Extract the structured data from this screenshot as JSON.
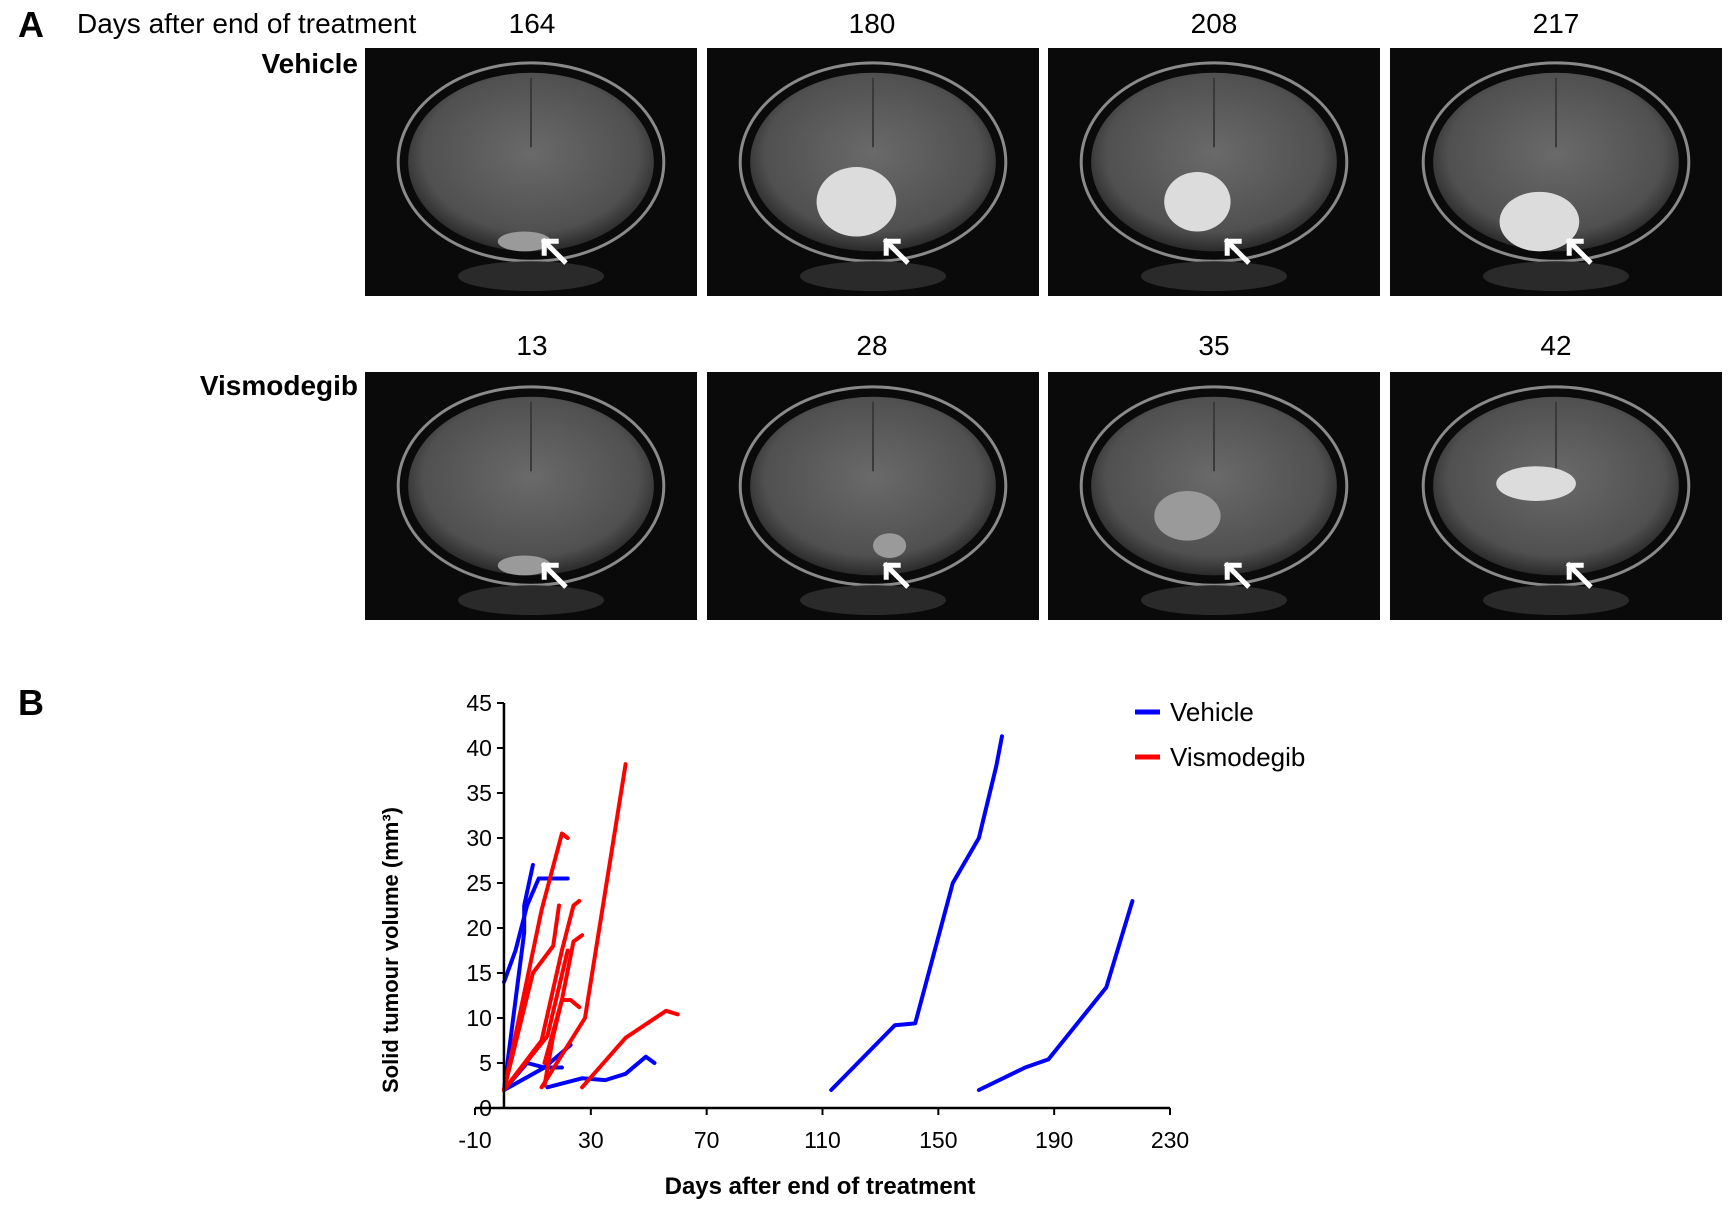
{
  "panel_a": {
    "letter": "A",
    "header": "Days after end of treatment",
    "rows": [
      {
        "group": "Vehicle",
        "days": [
          "164",
          "180",
          "208",
          "217"
        ]
      },
      {
        "group": "Vismodegib",
        "days": [
          "13",
          "28",
          "35",
          "42"
        ]
      }
    ]
  },
  "panel_b": {
    "letter": "B"
  },
  "chart_data": {
    "type": "line",
    "xlabel": "Days after end of treatment",
    "ylabel": "Solid tumour volume (mm³)",
    "xlim": [
      -10,
      230
    ],
    "ylim": [
      0,
      45
    ],
    "xticks": [
      -10,
      30,
      70,
      110,
      150,
      190,
      230
    ],
    "yticks": [
      0,
      5,
      10,
      15,
      20,
      25,
      30,
      35,
      40,
      45
    ],
    "legend_position": "top-right",
    "colors": {
      "Vehicle": "#0000ff",
      "Vismodegib": "#ff0000"
    },
    "series": [
      {
        "name": "Vehicle",
        "color": "#0000ff",
        "x": [
          0,
          7,
          7,
          10
        ],
        "y": [
          2,
          19.5,
          22.5,
          27
        ]
      },
      {
        "name": "Vehicle",
        "color": "#0000ff",
        "x": [
          0,
          4,
          8,
          12,
          16,
          22
        ],
        "y": [
          14,
          17.5,
          22.5,
          25.5,
          25.5,
          25.5
        ]
      },
      {
        "name": "Vehicle",
        "color": "#0000ff",
        "x": [
          0,
          8,
          14,
          20
        ],
        "y": [
          2,
          5,
          4.5,
          4.5
        ]
      },
      {
        "name": "Vehicle",
        "color": "#0000ff",
        "x": [
          0,
          14,
          23
        ],
        "y": [
          2,
          4.5,
          7
        ]
      },
      {
        "name": "Vehicle",
        "color": "#0000ff",
        "x": [
          15,
          27,
          35,
          42,
          49,
          52
        ],
        "y": [
          2.3,
          3.3,
          3.1,
          3.8,
          5.7,
          5
        ]
      },
      {
        "name": "Vehicle",
        "color": "#0000ff",
        "x": [
          113,
          135,
          142,
          155,
          164,
          170,
          172
        ],
        "y": [
          2,
          9.2,
          9.4,
          25,
          30,
          38,
          41.3
        ]
      },
      {
        "name": "Vehicle",
        "color": "#0000ff",
        "x": [
          164,
          180,
          188,
          208,
          217
        ],
        "y": [
          2,
          4.5,
          5.4,
          13.4,
          23
        ]
      }
    ],
    "series_red": [
      {
        "name": "Vismodegib",
        "color": "#ff0000",
        "x": [
          0,
          13,
          20,
          22
        ],
        "y": [
          2,
          22,
          30.5,
          30
        ]
      },
      {
        "name": "Vismodegib",
        "color": "#ff0000",
        "x": [
          0,
          15,
          22
        ],
        "y": [
          2,
          8,
          17.5
        ]
      },
      {
        "name": "Vismodegib",
        "color": "#ff0000",
        "x": [
          0,
          10,
          17,
          19
        ],
        "y": [
          2,
          15,
          18,
          22.5
        ]
      },
      {
        "name": "Vismodegib",
        "color": "#ff0000",
        "x": [
          0,
          13,
          20,
          24,
          26
        ],
        "y": [
          2,
          7.5,
          17.5,
          22.5,
          23
        ]
      },
      {
        "name": "Vismodegib",
        "color": "#ff0000",
        "x": [
          14,
          17,
          20,
          23,
          26
        ],
        "y": [
          2.5,
          8,
          12,
          12,
          11.2
        ]
      },
      {
        "name": "Vismodegib",
        "color": "#ff0000",
        "x": [
          14,
          20,
          24,
          27
        ],
        "y": [
          5,
          12,
          18.5,
          19.2
        ]
      },
      {
        "name": "Vismodegib",
        "color": "#ff0000",
        "x": [
          13,
          28,
          42
        ],
        "y": [
          2.3,
          10,
          38.2
        ]
      },
      {
        "name": "Vismodegib",
        "color": "#ff0000",
        "x": [
          27,
          42,
          56,
          60
        ],
        "y": [
          2.3,
          7.8,
          10.8,
          10.4
        ]
      }
    ]
  }
}
